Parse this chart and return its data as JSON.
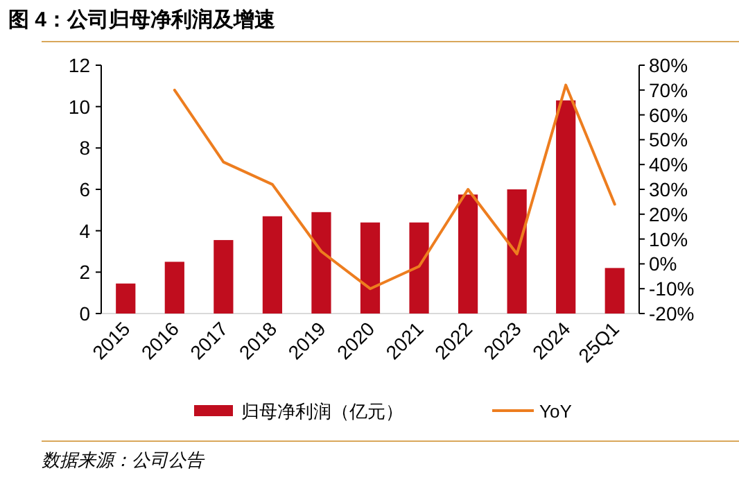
{
  "chart_data": {
    "type": "bar",
    "title": "图 4：公司归母净利润及增速",
    "categories": [
      "2015",
      "2016",
      "2017",
      "2018",
      "2019",
      "2020",
      "2021",
      "2022",
      "2023",
      "2024",
      "25Q1"
    ],
    "series": [
      {
        "name": "归母净利润（亿元）",
        "color": "#c00d1e",
        "values": [
          1.45,
          2.5,
          3.55,
          4.7,
          4.9,
          4.4,
          4.4,
          5.75,
          6.0,
          10.3,
          2.2
        ]
      },
      {
        "name": "YoY",
        "type": "line",
        "axis": "y2",
        "color": "#ed7d1f",
        "values": [
          null,
          70,
          41,
          32,
          5,
          -10,
          -1,
          30,
          4,
          72,
          24
        ]
      }
    ],
    "ylim": [
      0,
      12
    ],
    "yticks": [
      0,
      2,
      4,
      6,
      8,
      10,
      12
    ],
    "y2lim": [
      -20,
      80
    ],
    "y2ticks": [
      {
        "value": -20,
        "label": "-20%"
      },
      {
        "value": -10,
        "label": "-10%"
      },
      {
        "value": 0,
        "label": "0%"
      },
      {
        "value": 10,
        "label": "10%"
      },
      {
        "value": 20,
        "label": "20%"
      },
      {
        "value": 30,
        "label": "30%"
      },
      {
        "value": 40,
        "label": "40%"
      },
      {
        "value": 50,
        "label": "50%"
      },
      {
        "value": 60,
        "label": "60%"
      },
      {
        "value": 70,
        "label": "70%"
      },
      {
        "value": 80,
        "label": "80%"
      }
    ],
    "legend": "bottom",
    "grid": false,
    "annotations": [
      "数据来源：公司公告"
    ]
  }
}
